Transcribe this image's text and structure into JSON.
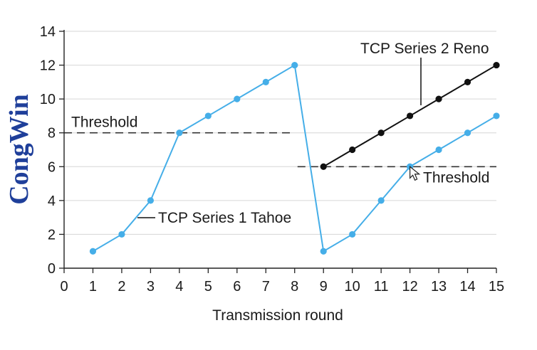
{
  "chart_data": {
    "type": "line",
    "xlabel": "Transmission round",
    "ylabel": "CongWin",
    "xlim": [
      0,
      15
    ],
    "ylim": [
      0,
      14
    ],
    "x_ticks": [
      0,
      1,
      2,
      3,
      4,
      5,
      6,
      7,
      8,
      9,
      10,
      11,
      12,
      13,
      14,
      15
    ],
    "y_ticks": [
      0,
      2,
      4,
      6,
      8,
      10,
      12,
      14
    ],
    "grid": "horizontal",
    "series": [
      {
        "name": "TCP Series 1 Tahoe",
        "color": "#45aee8",
        "x": [
          1,
          2,
          3,
          4,
          5,
          6,
          7,
          8,
          9,
          10,
          11,
          12,
          13,
          14,
          15
        ],
        "y": [
          1,
          2,
          4,
          8,
          9,
          10,
          11,
          12,
          1,
          2,
          4,
          6,
          7,
          8,
          9
        ]
      },
      {
        "name": "TCP Series 2 Reno",
        "color": "#111111",
        "x": [
          9,
          10,
          11,
          12,
          13,
          14,
          15
        ],
        "y": [
          6,
          7,
          8,
          9,
          10,
          11,
          12
        ]
      }
    ],
    "thresholds": [
      {
        "label": "Threshold",
        "value": 8,
        "x_range": [
          0,
          8
        ]
      },
      {
        "label": "Threshold",
        "value": 6,
        "x_range": [
          8.1,
          15
        ]
      }
    ],
    "annotations": [
      {
        "text": "TCP Series 1 Tahoe",
        "series": 0
      },
      {
        "text": "TCP Series 2 Reno",
        "series": 1
      }
    ]
  }
}
